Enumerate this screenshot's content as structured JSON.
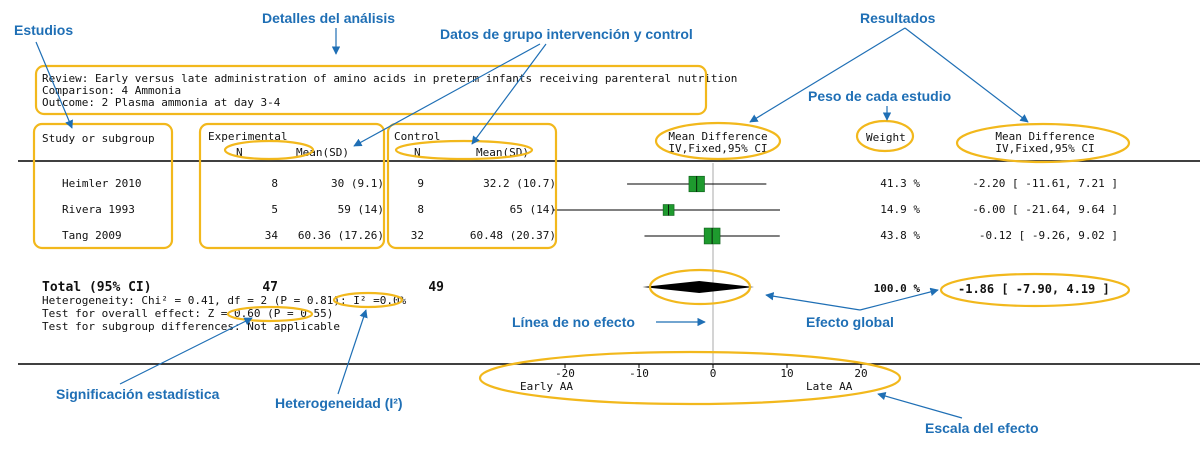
{
  "callouts": {
    "estudios": "Estudios",
    "detalles": "Detalles del análisis",
    "datos_grupo": "Datos de grupo intervención y control",
    "resultados": "Resultados",
    "peso": "Peso de cada estudio",
    "linea_no_efecto": "Línea de no efecto",
    "efecto_global": "Efecto global",
    "significacion": "Significación estadística",
    "heterogeneidad": "Heterogeneidad (I²)",
    "escala": "Escala del efecto"
  },
  "review": {
    "review": "Review:  Early versus late administration of amino acids in preterm infants receiving parenteral nutrition",
    "comparison": "Comparison:  4 Ammonia",
    "outcome": "Outcome:  2 Plasma ammonia at day 3-4"
  },
  "headers": {
    "study": "Study or subgroup",
    "experimental": "Experimental",
    "control": "Control",
    "n": "N",
    "mean_sd": "Mean(SD)",
    "md_line1": "Mean Difference",
    "md_line2": "IV,Fixed,95% CI",
    "weight": "Weight",
    "md2_line1": "Mean Difference",
    "md2_line2": "IV,Fixed,95% CI"
  },
  "total": {
    "label": "Total (95% CI)",
    "exp_n": "47",
    "ctrl_n": "49",
    "weight": "100.0 %",
    "ci_text": "-1.86 [ -7.90, 4.19 ]",
    "heterogeneity": "Heterogeneity: Chi² = 0.41, df = 2 (P = 0.81); I² =0.0%",
    "overall_effect": "Test for overall effect: Z = 0.60 (P = 0.55)",
    "subgroup": "Test for subgroup differences: Not applicable"
  },
  "axis": {
    "left_label": "Early AA",
    "right_label": "Late AA"
  },
  "chart_data": {
    "type": "forest",
    "studies": [
      {
        "name": "Heimler 2010",
        "exp_n": "8",
        "exp_mean_sd": "30 (9.1)",
        "ctrl_n": "9",
        "ctrl_mean_sd": "32.2 (10.7)",
        "weight": "41.3 %",
        "ci_text": "-2.20 [ -11.61, 7.21 ]",
        "md": -2.2,
        "lo": -11.61,
        "hi": 7.21,
        "w": 41.3
      },
      {
        "name": "Rivera 1993",
        "exp_n": "5",
        "exp_mean_sd": "59 (14)",
        "ctrl_n": "8",
        "ctrl_mean_sd": "65 (14)",
        "weight": "14.9 %",
        "ci_text": "-6.00 [ -21.64, 9.64 ]",
        "md": -6.0,
        "lo": -21.64,
        "hi": 9.64,
        "w": 14.9
      },
      {
        "name": "Tang 2009",
        "exp_n": "34",
        "exp_mean_sd": "60.36 (17.26)",
        "ctrl_n": "32",
        "ctrl_mean_sd": "60.48 (20.37)",
        "weight": "43.8 %",
        "ci_text": "-0.12 [ -9.26, 9.02 ]",
        "md": -0.12,
        "lo": -9.26,
        "hi": 9.02,
        "w": 43.8
      }
    ],
    "pooled": {
      "md": -1.86,
      "lo": -7.9,
      "hi": 4.19
    },
    "xlim": [
      -20,
      20
    ],
    "ticks": [
      -20,
      -10,
      0,
      10,
      20
    ],
    "accent_green": "#1e9a2e",
    "annotation_yellow": "#f2b81c",
    "callout_blue": "#1f6fb5"
  }
}
